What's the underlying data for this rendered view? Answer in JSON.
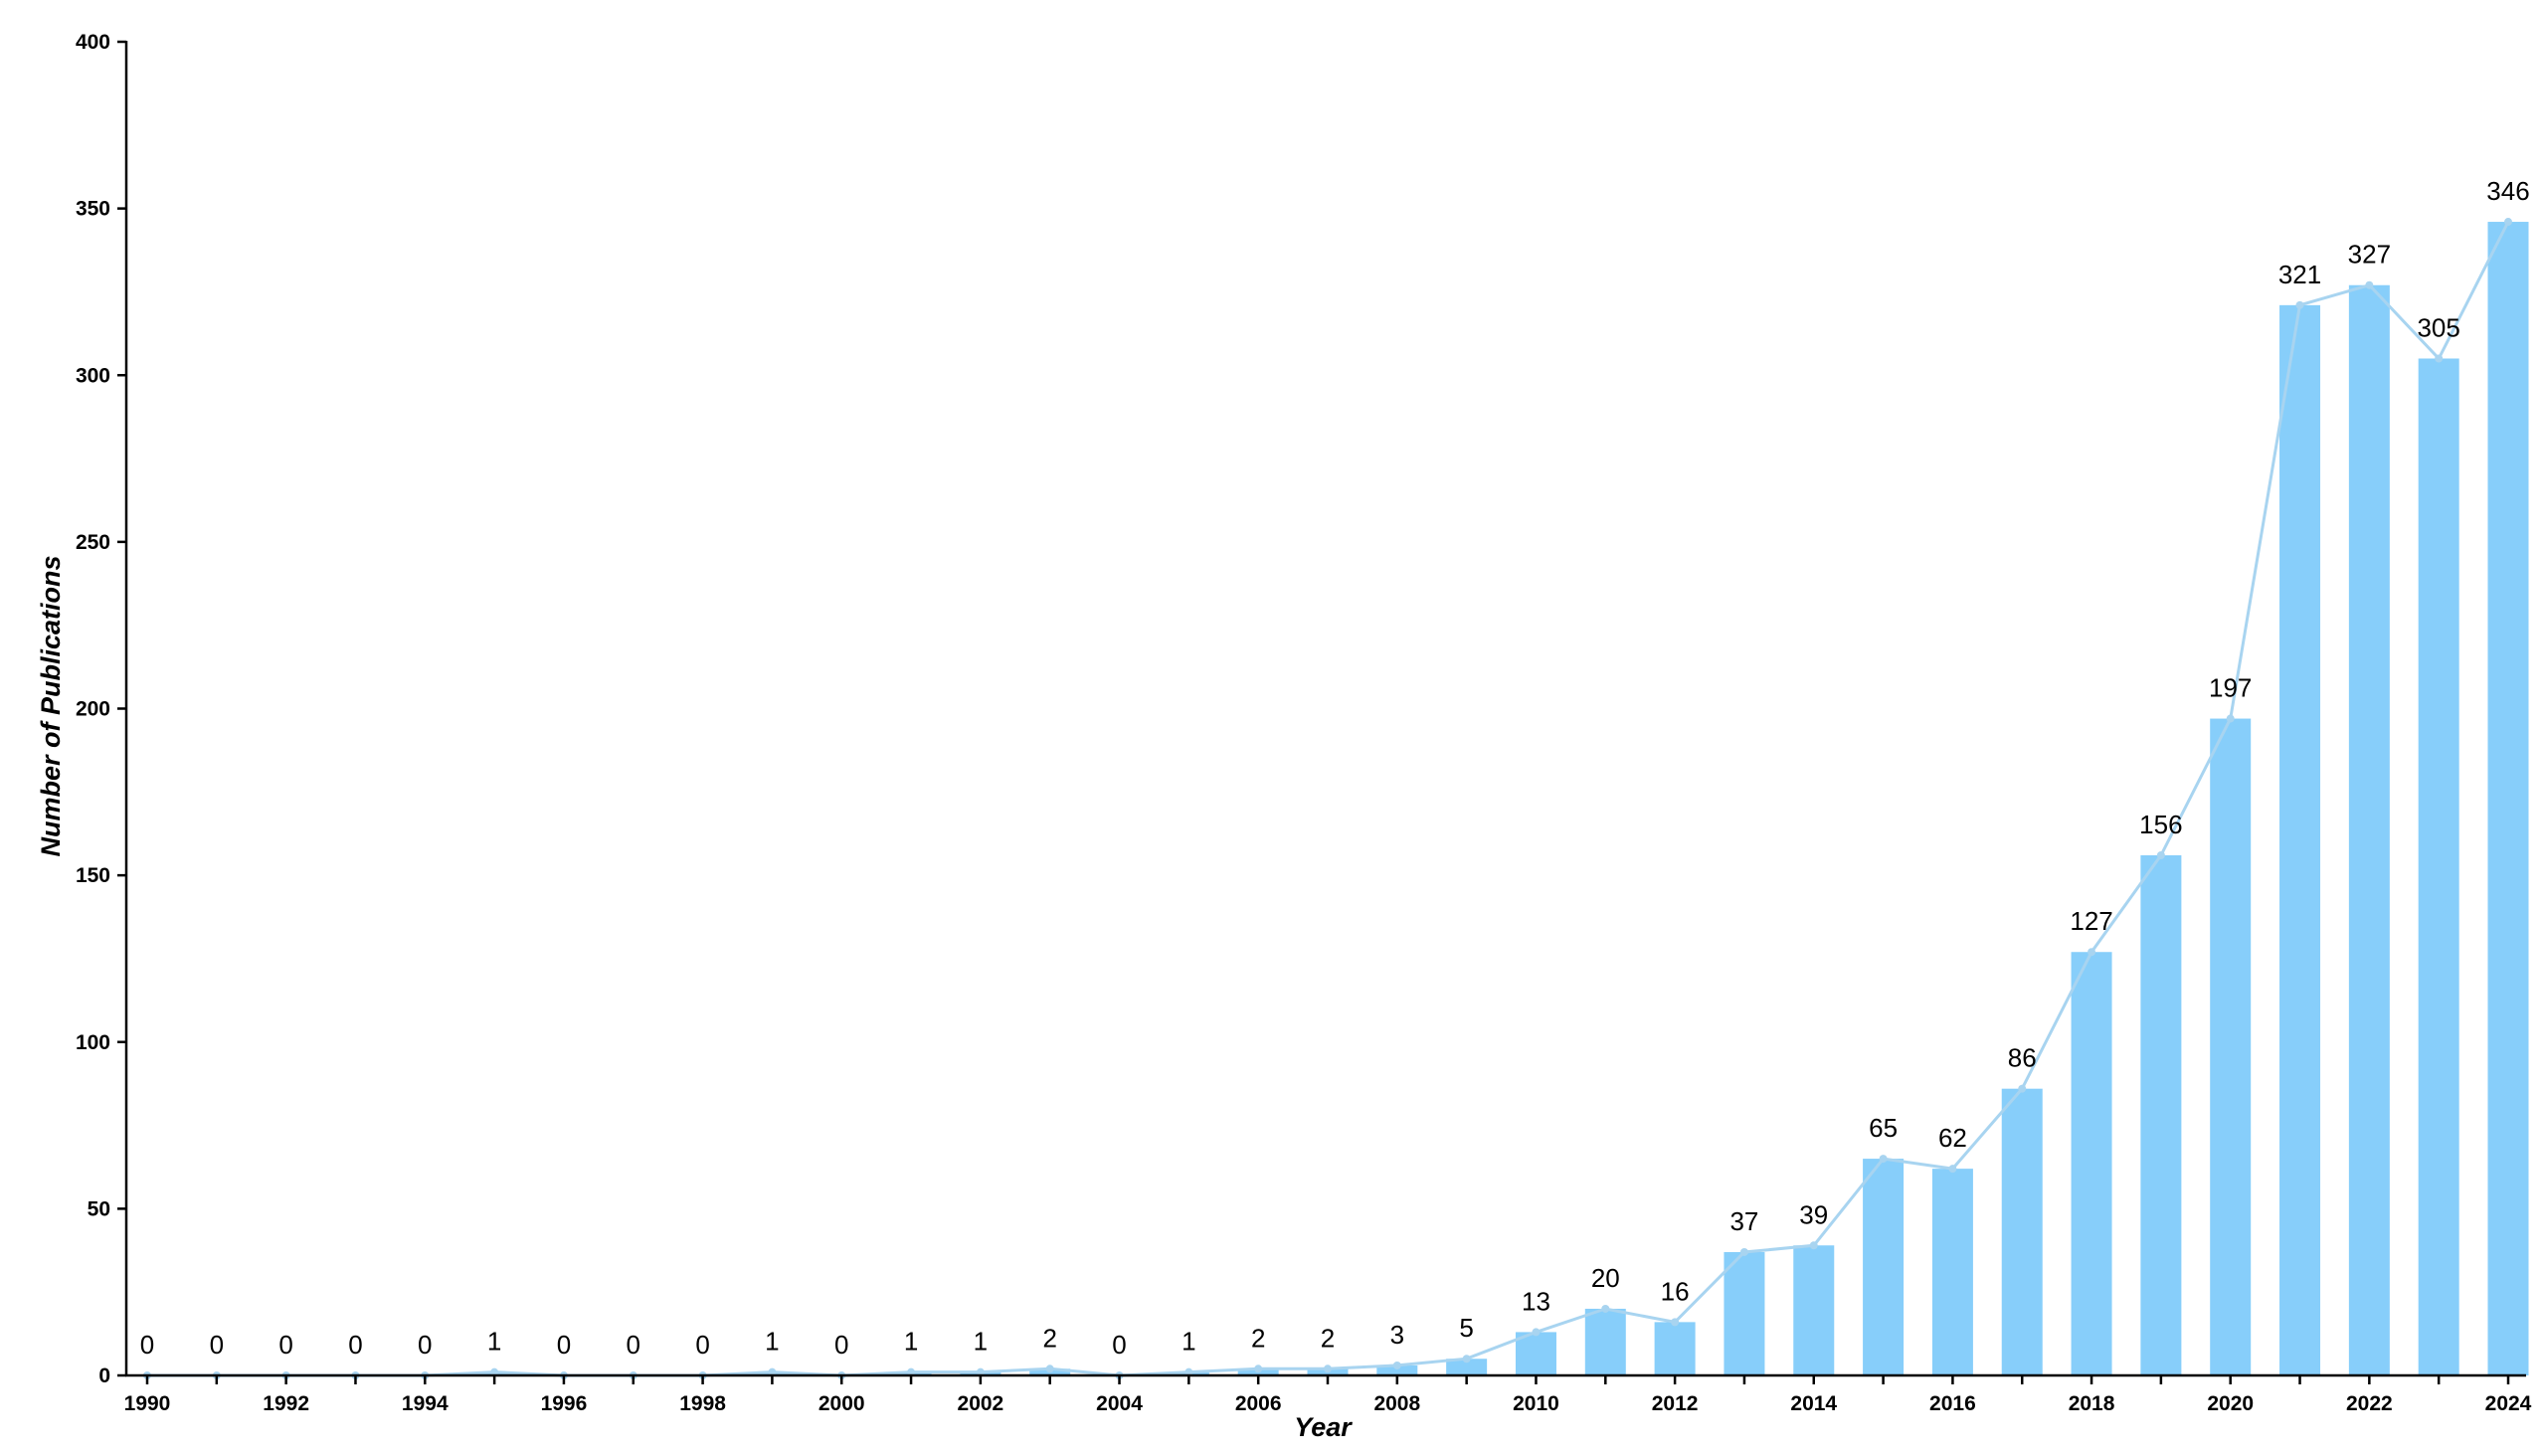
{
  "chart_data": {
    "type": "bar",
    "title": "",
    "xlabel": "Year",
    "ylabel": "Number of Publications",
    "ylim": [
      0,
      400
    ],
    "yticks": [
      0,
      50,
      100,
      150,
      200,
      250,
      300,
      350,
      400
    ],
    "xtick_labels": [
      "1990",
      "1992",
      "1994",
      "1996",
      "1998",
      "2000",
      "2002",
      "2004",
      "2006",
      "2008",
      "2010",
      "2012",
      "2014",
      "2016",
      "2018",
      "2020",
      "2022",
      "2024"
    ],
    "categories": [
      "1990",
      "1991",
      "1992",
      "1993",
      "1994",
      "1995",
      "1996",
      "1997",
      "1998",
      "1999",
      "2000",
      "2001",
      "2002",
      "2003",
      "2004",
      "2005",
      "2006",
      "2007",
      "2008",
      "2009",
      "2010",
      "2011",
      "2012",
      "2013",
      "2014",
      "2015",
      "2016",
      "2017",
      "2018",
      "2019",
      "2020",
      "2021",
      "2022",
      "2023",
      "2024"
    ],
    "values": [
      0,
      0,
      0,
      0,
      0,
      1,
      0,
      0,
      0,
      1,
      0,
      1,
      1,
      2,
      0,
      1,
      2,
      2,
      3,
      5,
      13,
      20,
      16,
      37,
      39,
      65,
      62,
      86,
      127,
      156,
      197,
      321,
      327,
      305,
      346
    ],
    "overlay": "line connecting bar tops",
    "grid": false,
    "legend": "none",
    "colors": {
      "bar": "#87CEFA",
      "line": "#A8D4F0",
      "axis": "#000000"
    }
  }
}
